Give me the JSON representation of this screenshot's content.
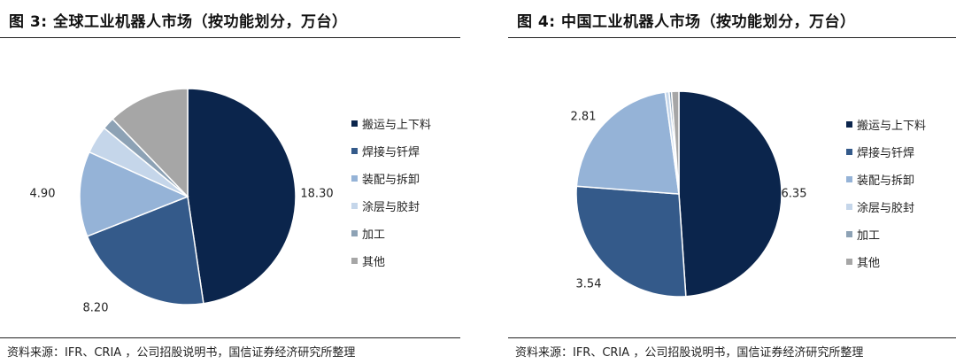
{
  "colors": [
    "#0b254c",
    "#345a8a",
    "#95b3d7",
    "#c5d6ea",
    "#8da2b5",
    "#a6a6a6"
  ],
  "legend_labels": [
    "搬运与上下料",
    "焊接与钎焊",
    "装配与拆卸",
    "涂层与胶封",
    "加工",
    "其他"
  ],
  "chart_data": [
    {
      "type": "pie",
      "title": "图 3:  全球工业机器人市场（按功能划分，万台）",
      "source": "资料来源：IFR、CRIA ，公司招股说明书，国信证券经济研究所整理",
      "categories": [
        "搬运与上下料",
        "焊接与钎焊",
        "装配与拆卸",
        "涂层与胶封",
        "加工",
        "其他"
      ],
      "values": [
        18.3,
        8.2,
        4.9,
        1.6,
        0.7,
        4.7
      ],
      "data_labels": [
        "18.30",
        "8.20",
        "4.90",
        "",
        "",
        ""
      ]
    },
    {
      "type": "pie",
      "title": "图 4:  中国工业机器人市场（按功能划分，万台）",
      "source": "资料来源：IFR、CRIA ，公司招股说明书，国信证券经济研究所整理",
      "categories": [
        "搬运与上下料",
        "焊接与钎焊",
        "装配与拆卸",
        "涂层与胶封",
        "加工",
        "其他"
      ],
      "values": [
        6.35,
        3.54,
        2.81,
        0.08,
        0.05,
        0.15
      ],
      "data_labels": [
        "6.35",
        "3.54",
        "2.81",
        "",
        "",
        ""
      ]
    }
  ]
}
